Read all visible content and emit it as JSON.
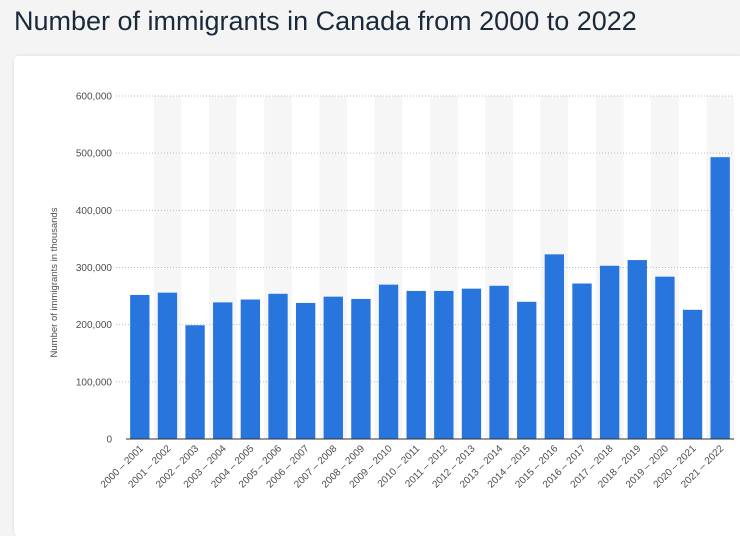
{
  "page": {
    "title": "Number of immigrants in Canada from 2000 to 2022"
  },
  "colors": {
    "bar": "#2876dd",
    "band": "#f6f6f6",
    "grid": "#bdbdbd",
    "axis": "#333333"
  },
  "chart_data": {
    "type": "bar",
    "title": "Number of immigrants in Canada from 2000 to 2022",
    "xlabel": "",
    "ylabel": "Number of immigrants in thousands",
    "ylim": [
      0,
      600000
    ],
    "yticks": [
      0,
      100000,
      200000,
      300000,
      400000,
      500000,
      600000
    ],
    "ytick_labels": [
      "0",
      "100,000",
      "200,000",
      "300,000",
      "400,000",
      "500,000",
      "600,000"
    ],
    "grid": true,
    "categories": [
      "2000 – 2001",
      "2001 – 2002",
      "2002 – 2003",
      "2003 – 2004",
      "2004 – 2005",
      "2005 – 2006",
      "2006 – 2007",
      "2007 – 2008",
      "2008 – 2009",
      "2009 – 2010",
      "2010 – 2011",
      "2011 – 2012",
      "2012 – 2013",
      "2013 – 2014",
      "2014 – 2015",
      "2015 – 2016",
      "2016 – 2017",
      "2017 – 2018",
      "2018 – 2019",
      "2019 – 2020",
      "2020 – 2021",
      "2021 – 2022"
    ],
    "values": [
      252000,
      256000,
      199000,
      239000,
      244000,
      254000,
      238000,
      249000,
      245000,
      270000,
      259000,
      259000,
      263000,
      268000,
      240000,
      323000,
      272000,
      303000,
      313000,
      284000,
      226000,
      493000
    ]
  }
}
